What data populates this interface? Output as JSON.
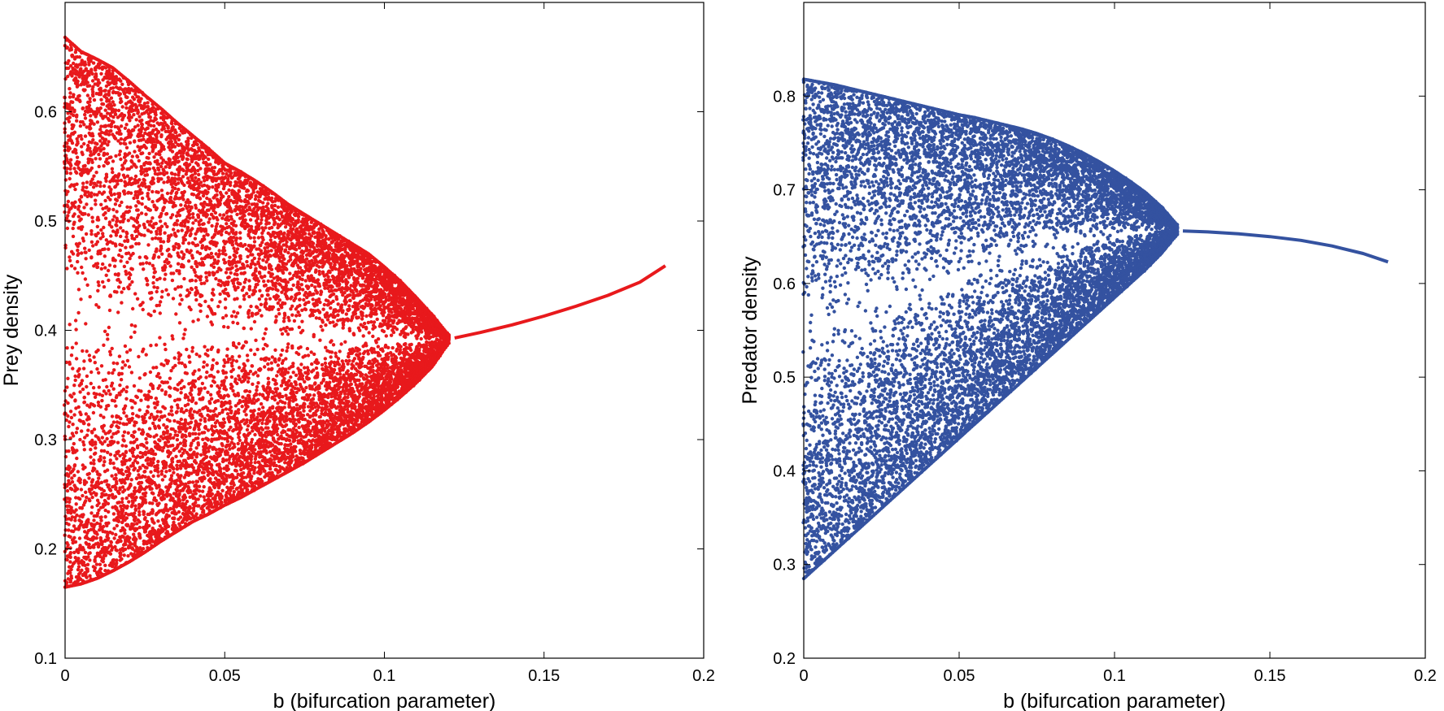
{
  "figure": {
    "panels": 2,
    "layout": "side-by-side"
  },
  "chart_data": [
    {
      "type": "scatter",
      "subtype": "bifurcation-diagram",
      "title": "",
      "xlabel": "b (bifurcation parameter)",
      "ylabel": "Prey density",
      "xlim": [
        0,
        0.2
      ],
      "ylim": [
        0.1,
        0.7
      ],
      "xticks": [
        0,
        0.05,
        0.1,
        0.15,
        0.2
      ],
      "xtick_labels": [
        "0",
        "0.05",
        "0.1",
        "0.15",
        "0.2"
      ],
      "yticks": [
        0.1,
        0.2,
        0.3,
        0.4,
        0.5,
        0.6
      ],
      "ytick_labels": [
        "0.1",
        "0.2",
        "0.3",
        "0.4",
        "0.5",
        "0.6"
      ],
      "grid": false,
      "color": "#e8191c",
      "series": [
        {
          "x": [
            0,
            0.005,
            0.01,
            0.015,
            0.02,
            0.025,
            0.03,
            0.035,
            0.04,
            0.045,
            0.05,
            0.055,
            0.06,
            0.065,
            0.07,
            0.075,
            0.08,
            0.085,
            0.09,
            0.095,
            0.1,
            0.105,
            0.11,
            0.115,
            0.12
          ],
          "upper": [
            0.668,
            0.655,
            0.648,
            0.64,
            0.628,
            0.615,
            0.603,
            0.59,
            0.578,
            0.566,
            0.553,
            0.545,
            0.536,
            0.526,
            0.515,
            0.506,
            0.497,
            0.488,
            0.479,
            0.47,
            0.458,
            0.445,
            0.43,
            0.414,
            0.396
          ],
          "lower": [
            0.165,
            0.168,
            0.173,
            0.18,
            0.188,
            0.197,
            0.207,
            0.216,
            0.225,
            0.232,
            0.24,
            0.247,
            0.255,
            0.263,
            0.271,
            0.279,
            0.288,
            0.297,
            0.306,
            0.316,
            0.327,
            0.339,
            0.352,
            0.367,
            0.388
          ]
        },
        {
          "x": [
            0.122,
            0.13,
            0.14,
            0.15,
            0.16,
            0.17,
            0.18,
            0.188
          ],
          "y": [
            0.393,
            0.398,
            0.405,
            0.413,
            0.422,
            0.432,
            0.444,
            0.459
          ]
        }
      ]
    },
    {
      "type": "scatter",
      "subtype": "bifurcation-diagram",
      "title": "",
      "xlabel": "b (bifurcation parameter)",
      "ylabel": "Predator density",
      "xlim": [
        0,
        0.2
      ],
      "ylim": [
        0.2,
        0.9
      ],
      "xticks": [
        0,
        0.05,
        0.1,
        0.15,
        0.2
      ],
      "xtick_labels": [
        "0",
        "0.05",
        "0.1",
        "0.15",
        "0.2"
      ],
      "yticks": [
        0.2,
        0.3,
        0.4,
        0.5,
        0.6,
        0.7,
        0.8
      ],
      "ytick_labels": [
        "0.2",
        "0.3",
        "0.4",
        "0.5",
        "0.6",
        "0.7",
        "0.8"
      ],
      "grid": false,
      "color": "#3452a0",
      "series": [
        {
          "x": [
            0,
            0.005,
            0.01,
            0.015,
            0.02,
            0.025,
            0.03,
            0.035,
            0.04,
            0.045,
            0.05,
            0.055,
            0.06,
            0.065,
            0.07,
            0.075,
            0.08,
            0.085,
            0.09,
            0.095,
            0.1,
            0.105,
            0.11,
            0.115,
            0.12
          ],
          "upper": [
            0.818,
            0.815,
            0.812,
            0.808,
            0.804,
            0.8,
            0.796,
            0.792,
            0.788,
            0.784,
            0.78,
            0.777,
            0.773,
            0.769,
            0.765,
            0.76,
            0.754,
            0.747,
            0.739,
            0.73,
            0.72,
            0.709,
            0.697,
            0.682,
            0.663
          ],
          "lower": [
            0.285,
            0.3,
            0.315,
            0.33,
            0.345,
            0.36,
            0.375,
            0.39,
            0.405,
            0.42,
            0.435,
            0.45,
            0.465,
            0.48,
            0.495,
            0.51,
            0.525,
            0.54,
            0.555,
            0.57,
            0.585,
            0.6,
            0.615,
            0.632,
            0.652
          ]
        },
        {
          "x": [
            0.122,
            0.13,
            0.14,
            0.15,
            0.16,
            0.17,
            0.18,
            0.188
          ],
          "y": [
            0.656,
            0.655,
            0.653,
            0.65,
            0.646,
            0.64,
            0.632,
            0.623
          ]
        }
      ]
    }
  ]
}
